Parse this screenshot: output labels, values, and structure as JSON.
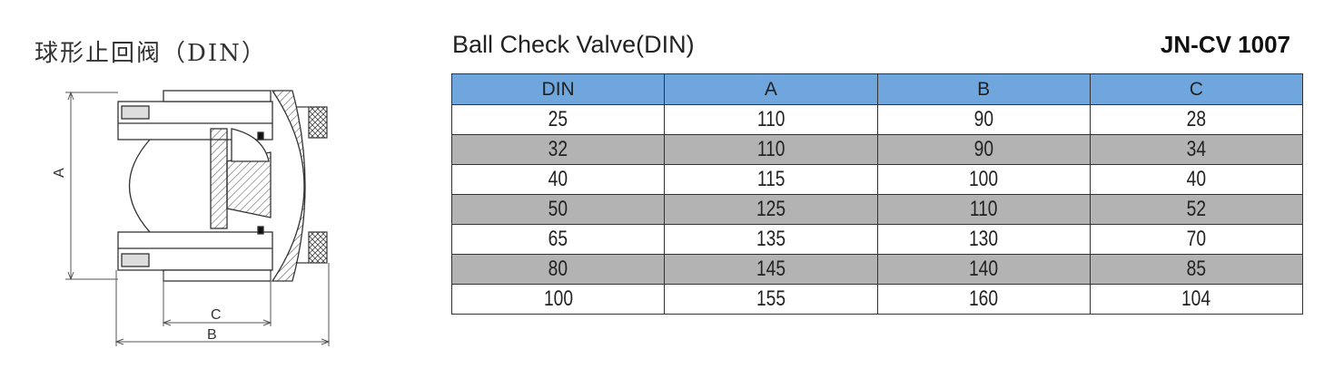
{
  "title_cn": "球形止回阀（DIN）",
  "title_en": "Ball Check Valve(DIN)",
  "model": "JN-CV 1007",
  "drawing": {
    "label_a": "A",
    "label_b": "B",
    "label_c": "C"
  },
  "table": {
    "header_color": "#6fa6de",
    "shade_color": "#b3b3b3",
    "columns": [
      "DIN",
      "A",
      "B",
      "C"
    ],
    "rows": [
      [
        "25",
        "110",
        "90",
        "28"
      ],
      [
        "32",
        "110",
        "90",
        "34"
      ],
      [
        "40",
        "115",
        "100",
        "40"
      ],
      [
        "50",
        "125",
        "110",
        "52"
      ],
      [
        "65",
        "135",
        "130",
        "70"
      ],
      [
        "80",
        "145",
        "140",
        "85"
      ],
      [
        "100",
        "155",
        "160",
        "104"
      ]
    ]
  }
}
